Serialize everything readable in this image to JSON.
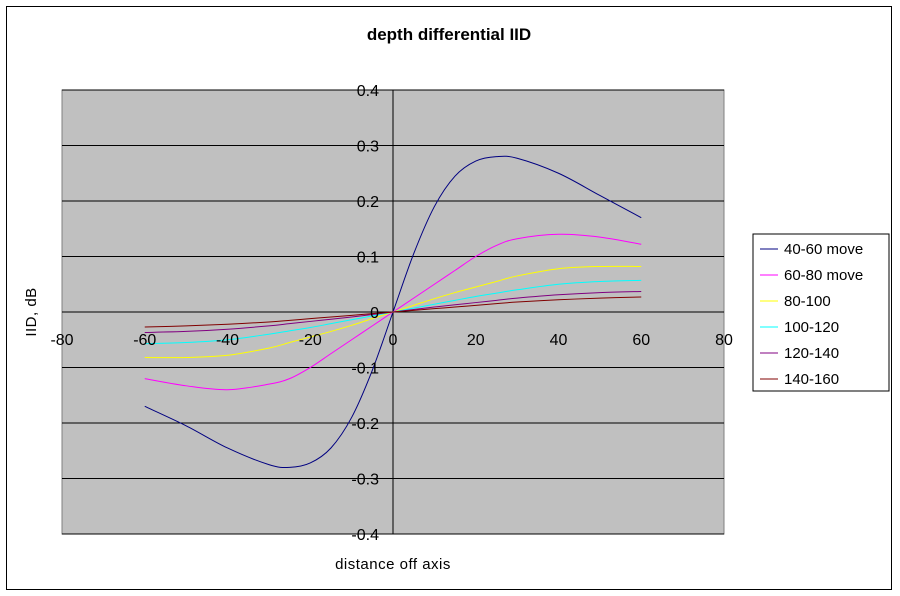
{
  "chart_data": {
    "type": "line",
    "title": "depth differential IID",
    "xlabel": "distance off axis",
    "ylabel": "IID, dB",
    "xlim": [
      -80,
      80
    ],
    "ylim": [
      -0.4,
      0.4
    ],
    "xticks": [
      -80,
      -60,
      -40,
      -20,
      0,
      20,
      40,
      60,
      80
    ],
    "yticks": [
      -0.4,
      -0.3,
      -0.2,
      -0.1,
      0,
      0.1,
      0.2,
      0.3,
      0.4
    ],
    "xtick_labels": [
      "-80",
      "-60",
      "-40",
      "-20",
      "0",
      "20",
      "40",
      "60",
      "80"
    ],
    "ytick_labels": [
      "-0.4",
      "-0.3",
      "-0.2",
      "-0.1",
      "0",
      "0.1",
      "0.2",
      "0.3",
      "0.4"
    ],
    "grid": "horizontal",
    "plot_background": "#c0c0c0",
    "legend_position": "right",
    "x": [
      -60,
      -50,
      -40,
      -30,
      -25,
      -20,
      -15,
      -10,
      -5,
      0,
      5,
      10,
      15,
      20,
      25,
      30,
      40,
      50,
      60
    ],
    "series": [
      {
        "name": "40-60 move",
        "color": "#000080",
        "values": [
          -0.17,
          -0.205,
          -0.245,
          -0.275,
          -0.28,
          -0.272,
          -0.245,
          -0.19,
          -0.105,
          0,
          0.105,
          0.19,
          0.245,
          0.272,
          0.28,
          0.277,
          0.25,
          0.21,
          0.17
        ]
      },
      {
        "name": "60-80 move",
        "color": "#ff00ff",
        "values": [
          -0.12,
          -0.133,
          -0.14,
          -0.13,
          -0.12,
          -0.1,
          -0.075,
          -0.05,
          -0.025,
          0,
          0.025,
          0.05,
          0.075,
          0.1,
          0.12,
          0.132,
          0.14,
          0.135,
          0.122
        ]
      },
      {
        "name": "80-100",
        "color": "#ffff00",
        "values": [
          -0.082,
          -0.082,
          -0.078,
          -0.065,
          -0.055,
          -0.045,
          -0.035,
          -0.024,
          -0.012,
          0,
          0.012,
          0.024,
          0.035,
          0.045,
          0.055,
          0.065,
          0.078,
          0.082,
          0.082
        ]
      },
      {
        "name": "100-120",
        "color": "#00ffff",
        "values": [
          -0.057,
          -0.055,
          -0.05,
          -0.04,
          -0.034,
          -0.028,
          -0.021,
          -0.014,
          -0.007,
          0,
          0.007,
          0.014,
          0.021,
          0.028,
          0.034,
          0.04,
          0.05,
          0.055,
          0.057
        ]
      },
      {
        "name": "120-140",
        "color": "#800080",
        "values": [
          -0.037,
          -0.035,
          -0.031,
          -0.025,
          -0.021,
          -0.017,
          -0.013,
          -0.009,
          -0.0045,
          0,
          0.0045,
          0.009,
          0.013,
          0.017,
          0.021,
          0.025,
          0.031,
          0.035,
          0.037
        ]
      },
      {
        "name": "140-160",
        "color": "#800000",
        "values": [
          -0.027,
          -0.025,
          -0.022,
          -0.018,
          -0.015,
          -0.012,
          -0.009,
          -0.006,
          -0.003,
          0,
          0.003,
          0.006,
          0.009,
          0.012,
          0.015,
          0.018,
          0.022,
          0.025,
          0.027
        ]
      }
    ]
  }
}
